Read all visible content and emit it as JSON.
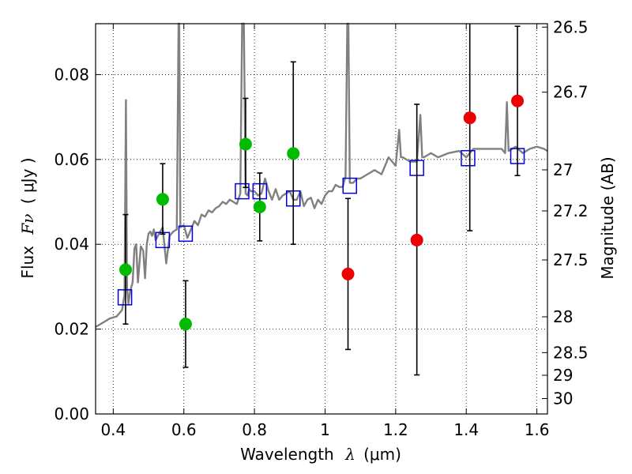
{
  "chart_data": {
    "type": "scatter",
    "title": "",
    "xlabel_prefix": "Wavelength",
    "xlabel_symbol": "λ",
    "xlabel_unit": "(μm)",
    "ylabel_prefix": "Flux",
    "ylabel_symbol": "Fν",
    "ylabel_unit": "( μJy )",
    "ylabel_right": "Magnitude (AB)",
    "xlim": [
      0.35,
      1.63
    ],
    "ylim": [
      0.0,
      0.092
    ],
    "grid": true,
    "x_ticks": [
      {
        "value": 0.4,
        "label": "0.4"
      },
      {
        "value": 0.6,
        "label": "0.6"
      },
      {
        "value": 0.8,
        "label": "0.8"
      },
      {
        "value": 1.0,
        "label": "1"
      },
      {
        "value": 1.2,
        "label": "1.2"
      },
      {
        "value": 1.4,
        "label": "1.4"
      },
      {
        "value": 1.6,
        "label": "1.6"
      }
    ],
    "y_ticks": [
      {
        "value": 0.0,
        "label": "0.00"
      },
      {
        "value": 0.02,
        "label": "0.02"
      },
      {
        "value": 0.04,
        "label": "0.04"
      },
      {
        "value": 0.06,
        "label": "0.06"
      },
      {
        "value": 0.08,
        "label": "0.08"
      }
    ],
    "right_ticks": [
      {
        "value": 26.5,
        "label": "26.5"
      },
      {
        "value": 26.7,
        "label": "26.7"
      },
      {
        "value": 27.0,
        "label": "27"
      },
      {
        "value": 27.2,
        "label": "27.2"
      },
      {
        "value": 27.5,
        "label": "27.5"
      },
      {
        "value": 28.0,
        "label": "28"
      },
      {
        "value": 28.5,
        "label": "28.5"
      },
      {
        "value": 29.0,
        "label": "29"
      },
      {
        "value": 30.0,
        "label": "30"
      }
    ],
    "colors": {
      "model": "#808080",
      "model_flux": "#0000dd",
      "detection": "#00bb00",
      "low_sn": "#ee0000",
      "errorbar": "#000000"
    },
    "model_spectrum": {
      "x": [
        0.35,
        0.37,
        0.39,
        0.41,
        0.425,
        0.432,
        0.436,
        0.439,
        0.443,
        0.448,
        0.455,
        0.46,
        0.465,
        0.47,
        0.478,
        0.485,
        0.49,
        0.495,
        0.5,
        0.505,
        0.51,
        0.515,
        0.52,
        0.53,
        0.54,
        0.55,
        0.56,
        0.57,
        0.58,
        0.585,
        0.587,
        0.59,
        0.6,
        0.61,
        0.62,
        0.63,
        0.64,
        0.65,
        0.66,
        0.67,
        0.68,
        0.69,
        0.7,
        0.71,
        0.72,
        0.73,
        0.74,
        0.75,
        0.76,
        0.765,
        0.77,
        0.775,
        0.78,
        0.785,
        0.79,
        0.8,
        0.81,
        0.82,
        0.83,
        0.84,
        0.85,
        0.86,
        0.87,
        0.88,
        0.89,
        0.9,
        0.91,
        0.92,
        0.93,
        0.94,
        0.95,
        0.96,
        0.97,
        0.98,
        0.99,
        1.0,
        1.01,
        1.02,
        1.03,
        1.04,
        1.05,
        1.058,
        1.063,
        1.066,
        1.07,
        1.08,
        1.09,
        1.1,
        1.12,
        1.14,
        1.16,
        1.18,
        1.2,
        1.21,
        1.215,
        1.22,
        1.24,
        1.26,
        1.27,
        1.275,
        1.28,
        1.29,
        1.3,
        1.32,
        1.35,
        1.38,
        1.4,
        1.42,
        1.44,
        1.46,
        1.48,
        1.5,
        1.51,
        1.515,
        1.52,
        1.54,
        1.56,
        1.58,
        1.6,
        1.62,
        1.63
      ],
      "y": [
        0.0205,
        0.0215,
        0.0225,
        0.023,
        0.0245,
        0.028,
        0.074,
        0.03,
        0.026,
        0.029,
        0.031,
        0.039,
        0.04,
        0.031,
        0.0395,
        0.0385,
        0.032,
        0.04,
        0.0425,
        0.043,
        0.042,
        0.0435,
        0.041,
        0.0425,
        0.044,
        0.0355,
        0.042,
        0.043,
        0.0435,
        0.092,
        0.092,
        0.044,
        0.0445,
        0.0415,
        0.0435,
        0.0455,
        0.0445,
        0.047,
        0.0465,
        0.048,
        0.0475,
        0.0485,
        0.049,
        0.05,
        0.0495,
        0.0505,
        0.05,
        0.0495,
        0.052,
        0.092,
        0.092,
        0.052,
        0.0515,
        0.053,
        0.0525,
        0.0525,
        0.0515,
        0.052,
        0.0555,
        0.0525,
        0.0505,
        0.053,
        0.0505,
        0.0515,
        0.052,
        0.0525,
        0.0505,
        0.0505,
        0.0525,
        0.049,
        0.0505,
        0.051,
        0.0485,
        0.0505,
        0.0495,
        0.0515,
        0.0525,
        0.0525,
        0.054,
        0.0535,
        0.0535,
        0.056,
        0.092,
        0.092,
        0.0545,
        0.0545,
        0.0555,
        0.0555,
        0.0565,
        0.0575,
        0.0565,
        0.0605,
        0.0585,
        0.067,
        0.0605,
        0.0605,
        0.0595,
        0.0595,
        0.0705,
        0.0605,
        0.0605,
        0.061,
        0.0615,
        0.0605,
        0.0615,
        0.062,
        0.0605,
        0.0625,
        0.0625,
        0.0625,
        0.0625,
        0.0625,
        0.0615,
        0.0735,
        0.062,
        0.063,
        0.0615,
        0.0625,
        0.063,
        0.0625,
        0.062
      ]
    },
    "model_flux": {
      "x": [
        0.433,
        0.54,
        0.605,
        0.765,
        0.815,
        0.91,
        1.07,
        1.26,
        1.405,
        1.545
      ],
      "y": [
        0.0275,
        0.041,
        0.0425,
        0.0525,
        0.0525,
        0.0508,
        0.0538,
        0.058,
        0.0603,
        0.0608
      ]
    },
    "detections": {
      "x": [
        0.435,
        0.54,
        0.605,
        0.775,
        0.815,
        0.91
      ],
      "y": [
        0.034,
        0.0506,
        0.0212,
        0.0636,
        0.0488,
        0.0614
      ],
      "err_low": [
        0.0212,
        0.0424,
        0.011,
        0.0534,
        0.0408,
        0.04
      ],
      "err_high": [
        0.047,
        0.059,
        0.0314,
        0.0744,
        0.0568,
        0.083
      ]
    },
    "low_significance": {
      "x": [
        1.065,
        1.26,
        1.41,
        1.545
      ],
      "y": [
        0.033,
        0.041,
        0.0698,
        0.0738
      ],
      "err_low": [
        0.0152,
        0.0092,
        0.0432,
        0.0562
      ],
      "err_high": [
        0.0508,
        0.073,
        0.092,
        0.0914
      ]
    }
  }
}
